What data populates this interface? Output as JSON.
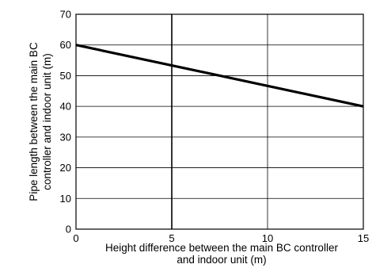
{
  "chart_data": {
    "type": "line",
    "title": "",
    "xlabel": [
      "Height difference between the main BC controller",
      "and indoor unit (m)"
    ],
    "ylabel": [
      "Pipe length between the main BC",
      "controller and indoor unit (m)"
    ],
    "xlim": [
      0,
      15
    ],
    "ylim": [
      0,
      70
    ],
    "xticks": [
      0,
      5,
      10,
      15
    ],
    "yticks": [
      0,
      10,
      20,
      30,
      40,
      50,
      60,
      70
    ],
    "x_tick_labels": [
      "0",
      "5",
      "10",
      "15"
    ],
    "y_tick_labels": [
      "0",
      "10",
      "20",
      "30",
      "40",
      "50",
      "60",
      "70"
    ],
    "grid": true,
    "series": [
      {
        "x": [
          0,
          15
        ],
        "y": [
          60,
          40
        ]
      }
    ]
  }
}
